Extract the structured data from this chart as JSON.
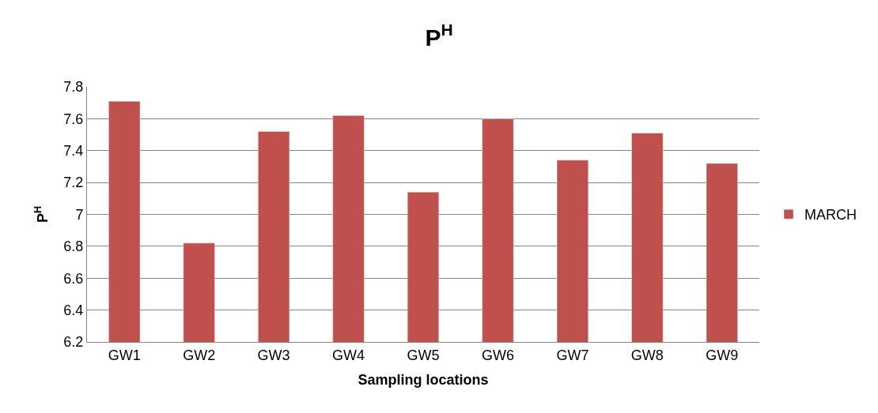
{
  "chart_data": {
    "type": "bar",
    "title": "P$^{H}$",
    "xlabel": "Sampling locations",
    "ylabel": "P$^{H}$",
    "categories": [
      "GW1",
      "GW2",
      "GW3",
      "GW4",
      "GW5",
      "GW6",
      "GW7",
      "GW8",
      "GW9"
    ],
    "series": [
      {
        "name": "MARCH",
        "color": "#c0504d",
        "values": [
          7.71,
          6.82,
          7.52,
          7.62,
          7.14,
          7.6,
          7.34,
          7.51,
          7.32
        ]
      }
    ],
    "ylim": [
      6.2,
      7.8
    ],
    "yticks": [
      6.2,
      6.4,
      6.6,
      6.8,
      7,
      7.2,
      7.4,
      7.6,
      7.8
    ],
    "grid": "y",
    "legend": "right"
  }
}
